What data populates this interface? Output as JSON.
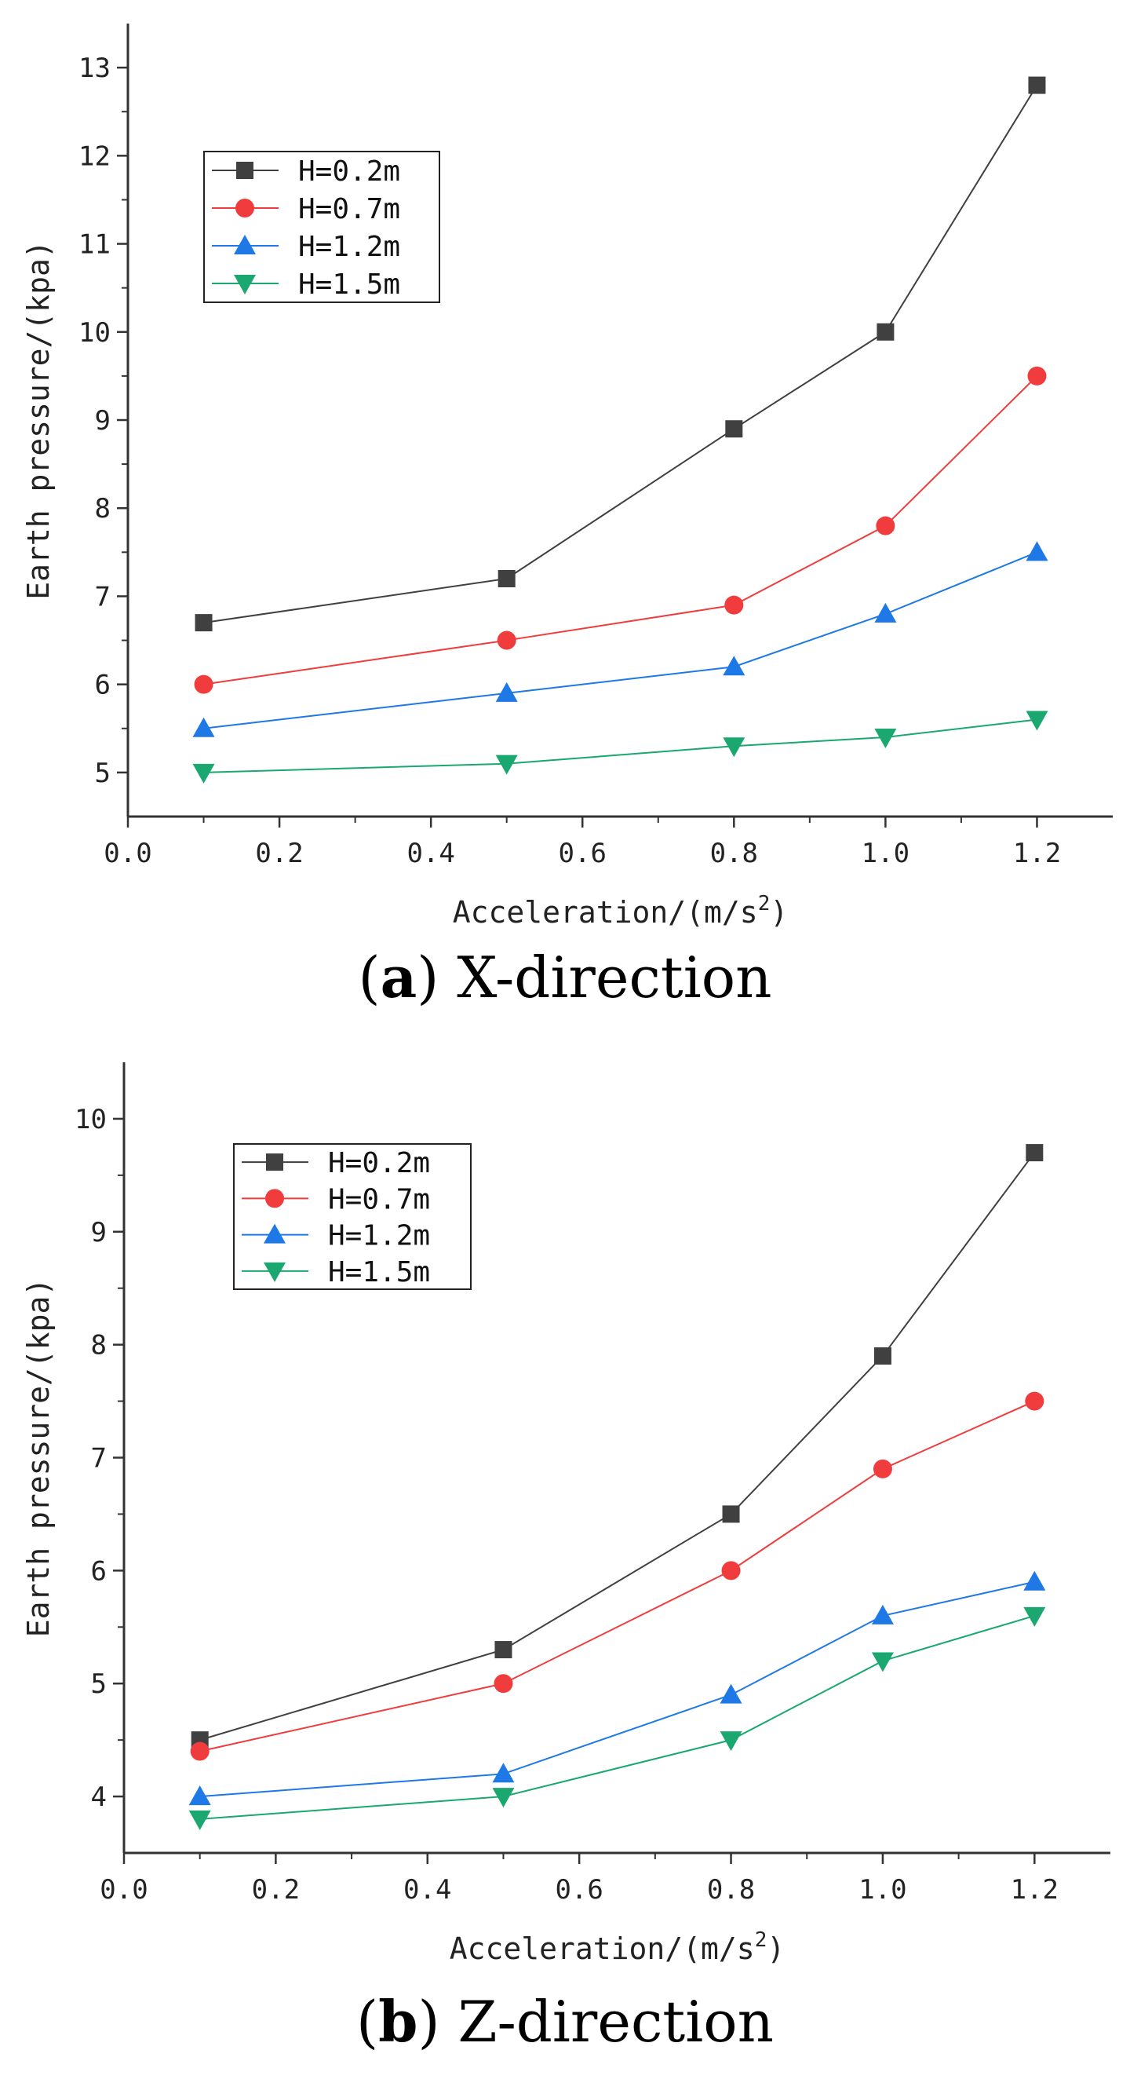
{
  "chart_data": [
    {
      "type": "line",
      "caption": {
        "open": "(",
        "letter": "a",
        "close": ")",
        "text": " X-direction"
      },
      "xlabel": "Acceleration/(m/s",
      "xlabel_sup": "2",
      "xlabel_end": ")",
      "ylabel": "Earth pressure/(kpa)",
      "xlim": [
        0.0,
        1.3
      ],
      "ylim": [
        4.5,
        13.5
      ],
      "xticks": [
        0.0,
        0.2,
        0.4,
        0.6,
        0.8,
        1.0,
        1.2
      ],
      "xtick_labels": [
        "0.0",
        "0.2",
        "0.4",
        "0.6",
        "0.8",
        "1.0",
        "1.2"
      ],
      "yticks": [
        5,
        6,
        7,
        8,
        9,
        10,
        11,
        12,
        13
      ],
      "ytick_labels": [
        "5",
        "6",
        "7",
        "8",
        "9",
        "10",
        "11",
        "12",
        "13"
      ],
      "legend_position": "top-left",
      "x": [
        0.1,
        0.5,
        0.8,
        1.0,
        1.2
      ],
      "series": [
        {
          "name": "H=0.2m",
          "values": [
            6.7,
            7.2,
            8.9,
            10.0,
            12.8
          ],
          "color": "#404040",
          "marker": "square"
        },
        {
          "name": "H=0.7m",
          "values": [
            6.0,
            6.5,
            6.9,
            7.8,
            9.5
          ],
          "color": "#f03c3c",
          "marker": "circle"
        },
        {
          "name": "H=1.2m",
          "values": [
            5.5,
            5.9,
            6.2,
            6.8,
            7.5
          ],
          "color": "#1e78e6",
          "marker": "triangle-up"
        },
        {
          "name": "H=1.5m",
          "values": [
            5.0,
            5.1,
            5.3,
            5.4,
            5.6
          ],
          "color": "#1aa870",
          "marker": "triangle-down"
        }
      ]
    },
    {
      "type": "line",
      "caption": {
        "open": "(",
        "letter": "b",
        "close": ")",
        "text": " Z-direction"
      },
      "xlabel": "Acceleration/(m/s",
      "xlabel_sup": "2",
      "xlabel_end": ")",
      "ylabel": "Earth pressure/(kpa)",
      "xlim": [
        0.0,
        1.3
      ],
      "ylim": [
        3.5,
        10.5
      ],
      "xticks": [
        0.0,
        0.2,
        0.4,
        0.6,
        0.8,
        1.0,
        1.2
      ],
      "xtick_labels": [
        "0.0",
        "0.2",
        "0.4",
        "0.6",
        "0.8",
        "1.0",
        "1.2"
      ],
      "yticks": [
        4,
        5,
        6,
        7,
        8,
        9,
        10
      ],
      "ytick_labels": [
        "4",
        "5",
        "6",
        "7",
        "8",
        "9",
        "10"
      ],
      "legend_position": "top-left",
      "x": [
        0.1,
        0.5,
        0.8,
        1.0,
        1.2
      ],
      "series": [
        {
          "name": "H=0.2m",
          "values": [
            4.5,
            5.3,
            6.5,
            7.9,
            9.7
          ],
          "color": "#404040",
          "marker": "square"
        },
        {
          "name": "H=0.7m",
          "values": [
            4.4,
            5.0,
            6.0,
            6.9,
            7.5
          ],
          "color": "#f03c3c",
          "marker": "circle"
        },
        {
          "name": "H=1.2m",
          "values": [
            4.0,
            4.2,
            4.9,
            5.6,
            5.9
          ],
          "color": "#1e78e6",
          "marker": "triangle-up"
        },
        {
          "name": "H=1.5m",
          "values": [
            3.8,
            4.0,
            4.5,
            5.2,
            5.6
          ],
          "color": "#1aa870",
          "marker": "triangle-down"
        }
      ]
    }
  ]
}
